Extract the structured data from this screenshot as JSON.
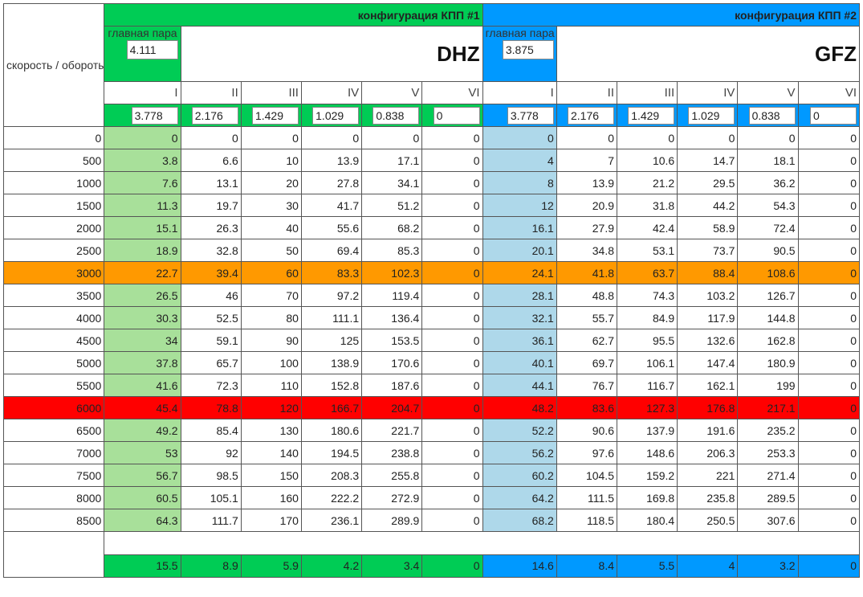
{
  "speed_label": "скорость / обороты",
  "main_pair_label": "главная пара",
  "config1": {
    "title": "конфигурация КПП #1",
    "model": "DHZ",
    "main_pair": "4.111",
    "ratios": [
      "3.778",
      "2.176",
      "1.429",
      "1.029",
      "0.838",
      "0"
    ],
    "color": "#00cc55",
    "light_color": "#a8e09a"
  },
  "config2": {
    "title": "конфигурация КПП #2",
    "model": "GFZ",
    "main_pair": "3.875",
    "ratios": [
      "3.778",
      "2.176",
      "1.429",
      "1.029",
      "0.838",
      "0"
    ],
    "color": "#0099ff",
    "light_color": "#aed8ea"
  },
  "gears": [
    "I",
    "II",
    "III",
    "IV",
    "V",
    "VI"
  ],
  "rows": [
    {
      "rpm": "0",
      "c1": [
        "0",
        "0",
        "0",
        "0",
        "0",
        "0"
      ],
      "c2": [
        "0",
        "0",
        "0",
        "0",
        "0",
        "0"
      ]
    },
    {
      "rpm": "500",
      "c1": [
        "3.8",
        "6.6",
        "10",
        "13.9",
        "17.1",
        "0"
      ],
      "c2": [
        "4",
        "7",
        "10.6",
        "14.7",
        "18.1",
        "0"
      ]
    },
    {
      "rpm": "1000",
      "c1": [
        "7.6",
        "13.1",
        "20",
        "27.8",
        "34.1",
        "0"
      ],
      "c2": [
        "8",
        "13.9",
        "21.2",
        "29.5",
        "36.2",
        "0"
      ]
    },
    {
      "rpm": "1500",
      "c1": [
        "11.3",
        "19.7",
        "30",
        "41.7",
        "51.2",
        "0"
      ],
      "c2": [
        "12",
        "20.9",
        "31.8",
        "44.2",
        "54.3",
        "0"
      ]
    },
    {
      "rpm": "2000",
      "c1": [
        "15.1",
        "26.3",
        "40",
        "55.6",
        "68.2",
        "0"
      ],
      "c2": [
        "16.1",
        "27.9",
        "42.4",
        "58.9",
        "72.4",
        "0"
      ]
    },
    {
      "rpm": "2500",
      "c1": [
        "18.9",
        "32.8",
        "50",
        "69.4",
        "85.3",
        "0"
      ],
      "c2": [
        "20.1",
        "34.8",
        "53.1",
        "73.7",
        "90.5",
        "0"
      ]
    },
    {
      "rpm": "3000",
      "c1": [
        "22.7",
        "39.4",
        "60",
        "83.3",
        "102.3",
        "0"
      ],
      "c2": [
        "24.1",
        "41.8",
        "63.7",
        "88.4",
        "108.6",
        "0"
      ],
      "highlight": "orange"
    },
    {
      "rpm": "3500",
      "c1": [
        "26.5",
        "46",
        "70",
        "97.2",
        "119.4",
        "0"
      ],
      "c2": [
        "28.1",
        "48.8",
        "74.3",
        "103.2",
        "126.7",
        "0"
      ]
    },
    {
      "rpm": "4000",
      "c1": [
        "30.3",
        "52.5",
        "80",
        "111.1",
        "136.4",
        "0"
      ],
      "c2": [
        "32.1",
        "55.7",
        "84.9",
        "117.9",
        "144.8",
        "0"
      ]
    },
    {
      "rpm": "4500",
      "c1": [
        "34",
        "59.1",
        "90",
        "125",
        "153.5",
        "0"
      ],
      "c2": [
        "36.1",
        "62.7",
        "95.5",
        "132.6",
        "162.8",
        "0"
      ]
    },
    {
      "rpm": "5000",
      "c1": [
        "37.8",
        "65.7",
        "100",
        "138.9",
        "170.6",
        "0"
      ],
      "c2": [
        "40.1",
        "69.7",
        "106.1",
        "147.4",
        "180.9",
        "0"
      ]
    },
    {
      "rpm": "5500",
      "c1": [
        "41.6",
        "72.3",
        "110",
        "152.8",
        "187.6",
        "0"
      ],
      "c2": [
        "44.1",
        "76.7",
        "116.7",
        "162.1",
        "199",
        "0"
      ]
    },
    {
      "rpm": "6000",
      "c1": [
        "45.4",
        "78.8",
        "120",
        "166.7",
        "204.7",
        "0"
      ],
      "c2": [
        "48.2",
        "83.6",
        "127.3",
        "176.8",
        "217.1",
        "0"
      ],
      "highlight": "red"
    },
    {
      "rpm": "6500",
      "c1": [
        "49.2",
        "85.4",
        "130",
        "180.6",
        "221.7",
        "0"
      ],
      "c2": [
        "52.2",
        "90.6",
        "137.9",
        "191.6",
        "235.2",
        "0"
      ]
    },
    {
      "rpm": "7000",
      "c1": [
        "53",
        "92",
        "140",
        "194.5",
        "238.8",
        "0"
      ],
      "c2": [
        "56.2",
        "97.6",
        "148.6",
        "206.3",
        "253.3",
        "0"
      ]
    },
    {
      "rpm": "7500",
      "c1": [
        "56.7",
        "98.5",
        "150",
        "208.3",
        "255.8",
        "0"
      ],
      "c2": [
        "60.2",
        "104.5",
        "159.2",
        "221",
        "271.4",
        "0"
      ]
    },
    {
      "rpm": "8000",
      "c1": [
        "60.5",
        "105.1",
        "160",
        "222.2",
        "272.9",
        "0"
      ],
      "c2": [
        "64.2",
        "111.5",
        "169.8",
        "235.8",
        "289.5",
        "0"
      ]
    },
    {
      "rpm": "8500",
      "c1": [
        "64.3",
        "111.7",
        "170",
        "236.1",
        "289.9",
        "0"
      ],
      "c2": [
        "68.2",
        "118.5",
        "180.4",
        "250.5",
        "307.6",
        "0"
      ]
    }
  ],
  "footer": {
    "c1": [
      "15.5",
      "8.9",
      "5.9",
      "4.2",
      "3.4",
      "0"
    ],
    "c2": [
      "14.6",
      "8.4",
      "5.5",
      "4",
      "3.2",
      "0"
    ]
  }
}
